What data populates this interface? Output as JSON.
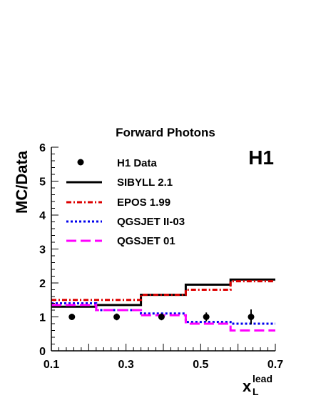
{
  "chart_data": {
    "type": "step",
    "title": "Forward Photons",
    "ylabel": "MC/Data",
    "xlabel_main": "x",
    "xlabel_sub": "L",
    "xlabel_sup": "lead",
    "experiment_label": "H1",
    "xlim": [
      0.1,
      0.7
    ],
    "ylim": [
      0,
      6
    ],
    "x_ticks": [
      "0.1",
      "0.3",
      "0.5",
      "0.7"
    ],
    "x_tick_values": [
      0.1,
      0.3,
      0.5,
      0.7
    ],
    "y_ticks": [
      "0",
      "1",
      "2",
      "3",
      "4",
      "5",
      "6"
    ],
    "y_tick_values": [
      0,
      1,
      2,
      3,
      4,
      5,
      6
    ],
    "bin_edges": [
      0.1,
      0.22,
      0.34,
      0.46,
      0.58,
      0.7
    ],
    "data": {
      "name": "H1 Data",
      "x": [
        0.155,
        0.275,
        0.395,
        0.515,
        0.635
      ],
      "y": [
        1.0,
        1.0,
        1.0,
        1.0,
        1.0
      ],
      "err": [
        0.06,
        0.1,
        0.1,
        0.13,
        0.22
      ]
    },
    "series": [
      {
        "name": "SIBYLL 2.1",
        "color": "#000000",
        "style": "solid",
        "values": [
          1.3,
          1.35,
          1.65,
          1.95,
          2.1
        ]
      },
      {
        "name": "EPOS 1.99",
        "color": "#dd0000",
        "style": "dashdot",
        "values": [
          1.5,
          1.5,
          1.65,
          1.8,
          2.05
        ]
      },
      {
        "name": "QGSJET II-03",
        "color": "#0000ee",
        "style": "dotted",
        "values": [
          1.4,
          1.2,
          1.1,
          0.85,
          0.8
        ]
      },
      {
        "name": "QGSJET 01",
        "color": "#ff00ff",
        "style": "longdash",
        "values": [
          1.35,
          1.2,
          1.05,
          0.8,
          0.6
        ]
      }
    ]
  }
}
